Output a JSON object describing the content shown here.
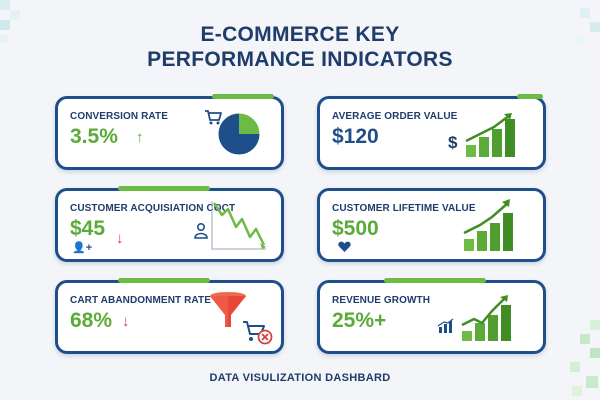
{
  "header": {
    "title_line1": "E-COMMERCE KEY",
    "title_line2": "PERFORMANCE INDICATORS"
  },
  "cards": [
    {
      "label": "CONVERSION RATE",
      "value": "3.5%",
      "trend": "up",
      "trend_symbol": "↑",
      "icon": "shopping-cart-icon",
      "visual": "pie-chart",
      "pie_fraction_highlighted": 0.25
    },
    {
      "label": "AVERAGE ORDER VALUE",
      "value": "$120",
      "icon_text": "$",
      "icon": "dollar-icon",
      "visual": "rising-bar-chart"
    },
    {
      "label": "CUSTOMER ACQUISIATION COCT",
      "value": "$45",
      "trend": "down",
      "trend_symbol": "↓",
      "icon": "add-user-icon",
      "visual": "declining-line-chart"
    },
    {
      "label": "CUSTOMER LIFETIME VALUE",
      "value": "$500",
      "icon": "heart-icon",
      "visual": "rising-bar-chart"
    },
    {
      "label": "CART ABANDONMENT RATE",
      "value": "68%",
      "trend": "down",
      "trend_symbol": "↓",
      "icon": "funnel-icon",
      "visual": "cart-cancel-icon"
    },
    {
      "label": "REVENUE GROWTH",
      "value": "25%+",
      "icon": "mini-bar-chart-icon",
      "visual": "rising-bar-chart"
    }
  ],
  "footer": {
    "text": "DATA VISULIZATION DASHBARD"
  },
  "colors": {
    "navy": "#1f3c6b",
    "card_border": "#1f4f8a",
    "green": "#5aab37",
    "red": "#d64040",
    "background": "#f3f5f8"
  }
}
